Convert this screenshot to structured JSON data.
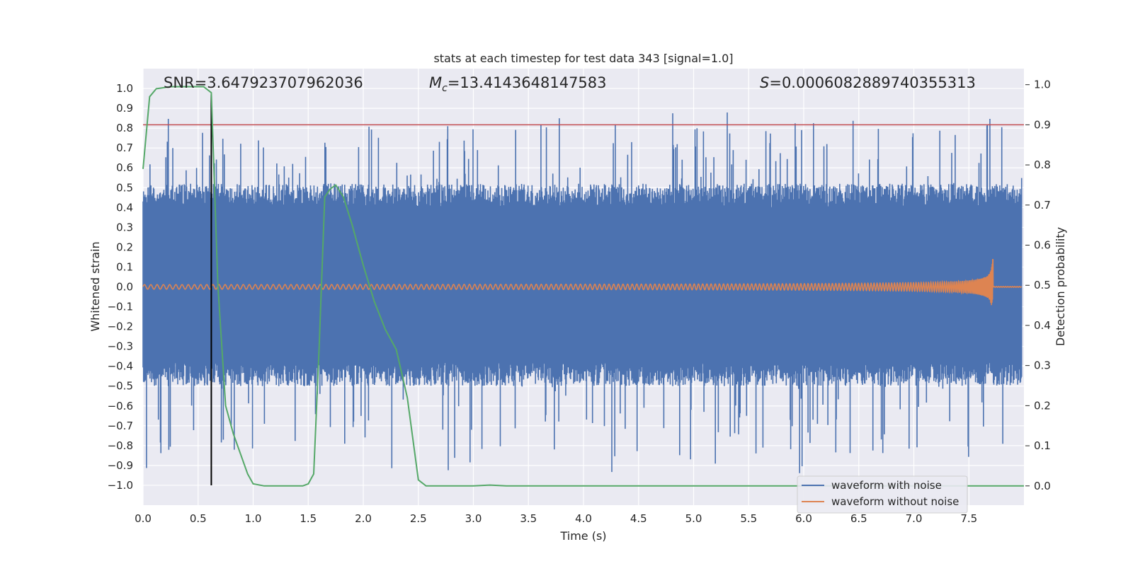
{
  "chart_data": {
    "type": "line",
    "title": "stats at each timestep for test data 343 [signal=1.0]",
    "xlabel": "Time (s)",
    "ylabel": "Whitened strain",
    "y2label": "Detection probability",
    "xlim": [
      0.0,
      8.0
    ],
    "ylim": [
      -1.1,
      1.1
    ],
    "y2lim": [
      -0.048,
      1.04
    ],
    "xticks": [
      "0.0",
      "0.5",
      "1.0",
      "1.5",
      "2.0",
      "2.5",
      "3.0",
      "3.5",
      "4.0",
      "4.5",
      "5.0",
      "5.5",
      "6.0",
      "6.5",
      "7.0",
      "7.5"
    ],
    "yticks": [
      "1.0",
      "0.9",
      "0.8",
      "0.7",
      "0.6",
      "0.5",
      "0.4",
      "0.3",
      "0.2",
      "0.1",
      "0.0",
      "−0.1",
      "−0.2",
      "−0.3",
      "−0.4",
      "−0.5",
      "−0.6",
      "−0.7",
      "−0.8",
      "−0.9",
      "−1.0"
    ],
    "y2ticks": [
      "1.0",
      "0.9",
      "0.8",
      "0.7",
      "0.6",
      "0.5",
      "0.4",
      "0.3",
      "0.2",
      "0.1",
      "0.0"
    ],
    "annotations": {
      "snr": "SNR=3.647923707962036",
      "mc_symbol": "M",
      "mc_sub": "c",
      "mc_value": "=13.4143648147583",
      "s_symbol": "S",
      "s_value": "=0.0006082889740355313"
    },
    "threshold": {
      "axis": "right",
      "value": 0.9,
      "color": "#c44e52"
    },
    "marker_line": {
      "x": 0.62,
      "color": "#000000",
      "y_from": -1.0,
      "y_to": 0.97
    },
    "detection_probability": {
      "name": "detection probability",
      "color": "#55a868",
      "x": [
        0.0,
        0.06,
        0.12,
        0.25,
        0.4,
        0.55,
        0.62,
        0.68,
        0.75,
        0.82,
        0.95,
        1.0,
        1.1,
        1.3,
        1.45,
        1.5,
        1.55,
        1.6,
        1.65,
        1.7,
        1.75,
        1.82,
        1.9,
        2.0,
        2.1,
        2.2,
        2.3,
        2.4,
        2.5,
        2.57,
        3.0,
        3.15,
        3.3,
        5.4,
        6.0,
        8.0
      ],
      "y": [
        0.79,
        0.97,
        0.99,
        0.995,
        0.995,
        0.995,
        0.98,
        0.5,
        0.2,
        0.13,
        0.03,
        0.005,
        0.0,
        0.0,
        0.0,
        0.005,
        0.03,
        0.35,
        0.72,
        0.74,
        0.75,
        0.72,
        0.65,
        0.55,
        0.46,
        0.39,
        0.34,
        0.22,
        0.015,
        0.0,
        0.0,
        0.002,
        0.0,
        0.0,
        0.0,
        0.0
      ]
    },
    "legend": {
      "placement": "bottom-right",
      "entries": [
        {
          "label": "waveform with noise",
          "color": "#4c72b0"
        },
        {
          "label": "waveform without noise",
          "color": "#dd8452"
        }
      ]
    },
    "series_style": {
      "noisy": {
        "color": "#4c72b0",
        "band_low": -0.38,
        "band_high": 0.4
      },
      "clean": {
        "color": "#dd8452",
        "merger_time": 7.72,
        "peak_amplitude": 0.18
      }
    }
  },
  "colors": {
    "axes_bg": "#eaeaf2",
    "grid": "#ffffff"
  }
}
